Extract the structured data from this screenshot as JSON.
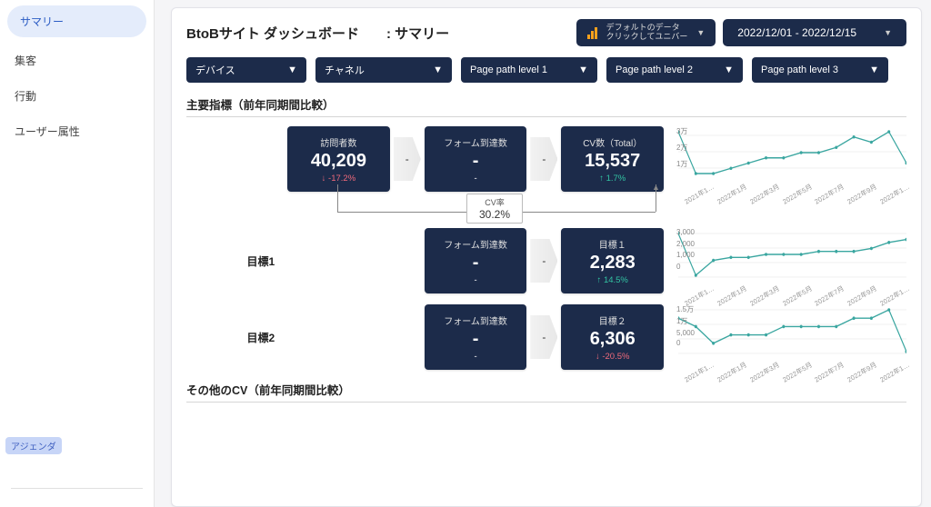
{
  "sidebar": {
    "items": [
      {
        "label": "サマリー",
        "active": true
      },
      {
        "label": "集客",
        "active": false
      },
      {
        "label": "行動",
        "active": false
      },
      {
        "label": "ユーザー属性",
        "active": false
      }
    ],
    "agenda": "アジェンダ"
  },
  "header": {
    "title": "BtoBサイト ダッシュボード　　: サマリー",
    "datasource_line1": "デフォルトのデータ",
    "datasource_line2": "クリックしてユニバー",
    "daterange": "2022/12/01 - 2022/12/15"
  },
  "filters": [
    {
      "label": "デバイス"
    },
    {
      "label": "チャネル"
    },
    {
      "label": "Page path level 1"
    },
    {
      "label": "Page path level 2"
    },
    {
      "label": "Page path level 3"
    }
  ],
  "sections": {
    "kpi_title": "主要指標（前年同期間比較）",
    "other_title": "その他のCV（前年同期間比較）"
  },
  "row1": {
    "c1": {
      "title": "訪問者数",
      "value": "40,209",
      "delta": "-17.2%",
      "dir": "down"
    },
    "c2": {
      "title": "フォーム到達数",
      "value": "-",
      "delta": "-"
    },
    "c3": {
      "title": "CV数（Total）",
      "value": "15,537",
      "delta": "1.7%",
      "dir": "up"
    },
    "cvrate": {
      "label": "CV率",
      "value": "30.2%"
    },
    "chart": {
      "ylabels": [
        "3万",
        "2万",
        "1万"
      ],
      "xlabels": [
        "2021年1…",
        "2022年1月",
        "2022年3月",
        "2022年5月",
        "2022年7月",
        "2022年9月",
        "2022年1…"
      ],
      "points": [
        22,
        14,
        14,
        15,
        16,
        17,
        17,
        18,
        18,
        19,
        21,
        20,
        22,
        16
      ]
    }
  },
  "row2": {
    "label": "目標1",
    "c2": {
      "title": "フォーム到達数",
      "value": "-",
      "delta": "-"
    },
    "c3": {
      "title": "目標１",
      "value": "2,283",
      "delta": "14.5%",
      "dir": "up"
    },
    "chart": {
      "ylabels": [
        "3,000",
        "2,000",
        "1,000",
        "0"
      ],
      "xlabels": [
        "2021年1…",
        "2022年1月",
        "2022年3月",
        "2022年5月",
        "2022年7月",
        "2022年9月",
        "2022年1…"
      ],
      "points": [
        26,
        12,
        17,
        18,
        18,
        19,
        19,
        19,
        20,
        20,
        20,
        21,
        23,
        24
      ]
    }
  },
  "row3": {
    "label": "目標2",
    "c2": {
      "title": "フォーム到達数",
      "value": "-",
      "delta": "-"
    },
    "c3": {
      "title": "目標２",
      "value": "6,306",
      "delta": "-20.5%",
      "dir": "down"
    },
    "chart": {
      "ylabels": [
        "1.5万",
        "1万",
        "5,000",
        "0"
      ],
      "xlabels": [
        "2021年1…",
        "2022年1月",
        "2022年3月",
        "2022年5月",
        "2022年7月",
        "2022年9月",
        "2022年1…"
      ],
      "points": [
        10,
        9,
        7,
        8,
        8,
        8,
        9,
        9,
        9,
        9,
        10,
        10,
        11,
        6
      ]
    }
  },
  "colors": {
    "navy": "#1c2b4a",
    "accent_up": "#32c4a3",
    "accent_down": "#f06a7b",
    "spark": "#3aa6a0",
    "orange": "#f8a11d",
    "sidebar_active": "#e4ecfb"
  }
}
